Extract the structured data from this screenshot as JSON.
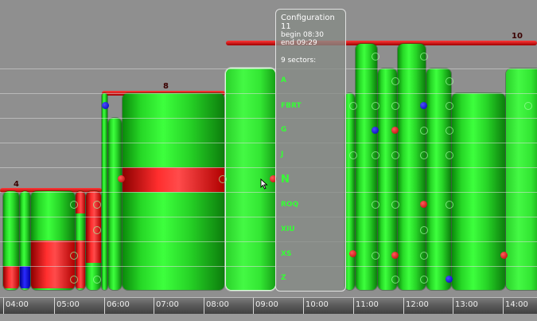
{
  "timeline": {
    "labels": [
      "04:00",
      "05:00",
      "06:00",
      "07:00",
      "08:00",
      "09:00",
      "10:00",
      "11:00",
      "12:00",
      "13:00",
      "14:00"
    ]
  },
  "configs": [
    {
      "label": "4"
    },
    {
      "label": "8"
    },
    {
      "label": "10"
    }
  ],
  "tooltip": {
    "title": "Configuration 11",
    "begin": "begin 08:30",
    "end": "end 09:29",
    "count": "9 sectors:",
    "sectors": [
      "A",
      "FBRT",
      "G",
      "J",
      "N",
      "ROQ",
      "XIU",
      "XS",
      "Z"
    ],
    "highlighted": "N"
  },
  "colors": {
    "load_ok": "#3dff3d",
    "overload": "#ff2e2e",
    "underload": "#2b2bff",
    "config_line": "#cc0000"
  }
}
